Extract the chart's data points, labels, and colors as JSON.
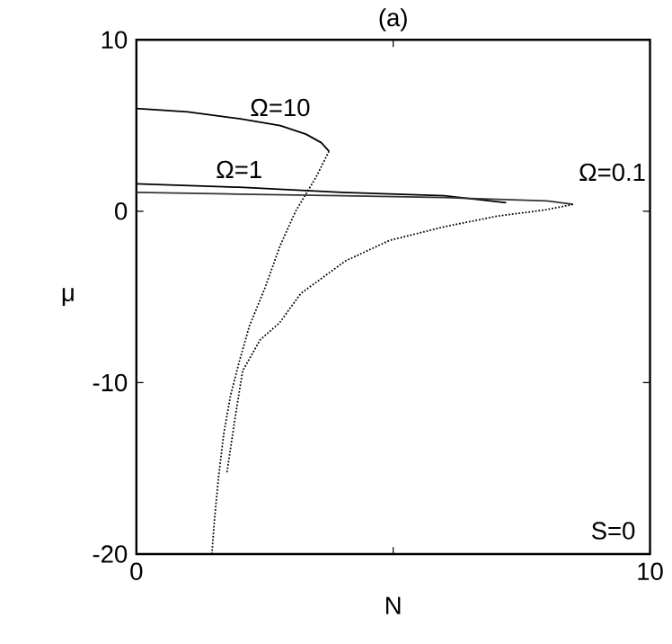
{
  "chart_data": {
    "type": "line",
    "title": "(a)",
    "xlabel": "N",
    "ylabel": "μ",
    "xlim": [
      0,
      10
    ],
    "ylim": [
      -20,
      10
    ],
    "xticks": [
      0,
      {
        "value": 5,
        "label": null
      },
      10
    ],
    "yticks": [
      -20,
      -10,
      0,
      10
    ],
    "grid": false,
    "marker": "none",
    "annotations": [
      "S=0"
    ],
    "series": [
      {
        "name": "Ω=10",
        "color": "#000000",
        "line_style": "solid",
        "x": [
          0,
          1,
          2,
          2.8,
          3.3,
          3.6,
          3.75
        ],
        "values": [
          6.0,
          5.8,
          5.4,
          5.0,
          4.5,
          4.0,
          3.5
        ]
      },
      {
        "name": "Ω=1",
        "color": "#000000",
        "line_style": "solid",
        "x": [
          0,
          2,
          4,
          6,
          7.2
        ],
        "values": [
          1.6,
          1.4,
          1.1,
          0.9,
          0.5
        ]
      },
      {
        "name": "Ω=0.1",
        "color": "#333333",
        "line_style": "solid",
        "x": [
          0,
          2,
          4,
          6,
          8,
          8.5
        ],
        "values": [
          1.1,
          1.0,
          0.9,
          0.8,
          0.6,
          0.4
        ]
      },
      {
        "color": "#000000",
        "line_style": "dotted",
        "x": [
          3.75,
          3.5,
          3.1,
          2.8,
          2.5,
          2.2,
          2.0,
          1.83,
          1.7,
          1.6,
          1.52,
          1.47
        ],
        "values": [
          3.5,
          2.0,
          0.0,
          -2,
          -4.5,
          -6.7,
          -8.8,
          -10.8,
          -13,
          -15.5,
          -18,
          -20
        ]
      },
      {
        "color": "#000000",
        "line_style": "dotted",
        "x": [
          8.5,
          8,
          7,
          6,
          4.93,
          4.07,
          3.2,
          2.79,
          2.41,
          2.07,
          1.93,
          1.76
        ],
        "values": [
          0.4,
          0.1,
          -0.3,
          -0.9,
          -1.7,
          -2.9,
          -4.8,
          -6.5,
          -7.5,
          -9.3,
          -11.9,
          -15.3
        ]
      }
    ]
  }
}
